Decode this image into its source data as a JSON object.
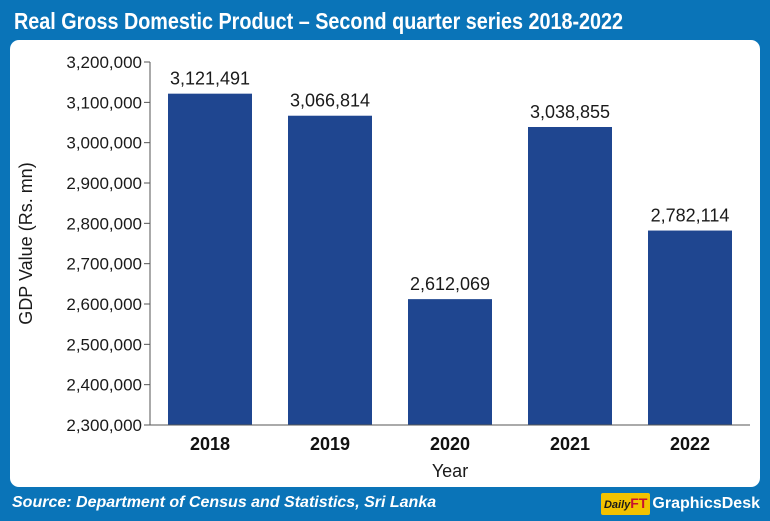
{
  "header": {
    "title": "Real Gross Domestic Product – Second quarter series 2018-2022"
  },
  "footer": {
    "source": "Source: Department of Census and Statistics, Sri Lanka",
    "brand_mark_daily": "Daily",
    "brand_mark_ft": "FT",
    "brand_text": "GraphicsDesk"
  },
  "colors": {
    "frame": "#0a74b8",
    "bar": "#1f4690"
  },
  "chart_data": {
    "type": "bar",
    "categories": [
      "2018",
      "2019",
      "2020",
      "2021",
      "2022"
    ],
    "values": [
      3121491,
      3066814,
      2612069,
      3038855,
      2782114
    ],
    "value_labels": [
      "3,121,491",
      "3,066,814",
      "2,612,069",
      "3,038,855",
      "2,782,114"
    ],
    "xlabel": "Year",
    "ylabel": "GDP Value (Rs. mn)",
    "ylim": [
      2300000,
      3200000
    ],
    "yticks": [
      2300000,
      2400000,
      2500000,
      2600000,
      2700000,
      2800000,
      2900000,
      3000000,
      3100000,
      3200000
    ],
    "ytick_labels": [
      "2,300,000",
      "2,400,000",
      "2,500,000",
      "2,600,000",
      "2,700,000",
      "2,800,000",
      "2,900,000",
      "3,000,000",
      "3,100,000",
      "3,200,000"
    ],
    "grid": false,
    "legend": "none"
  }
}
